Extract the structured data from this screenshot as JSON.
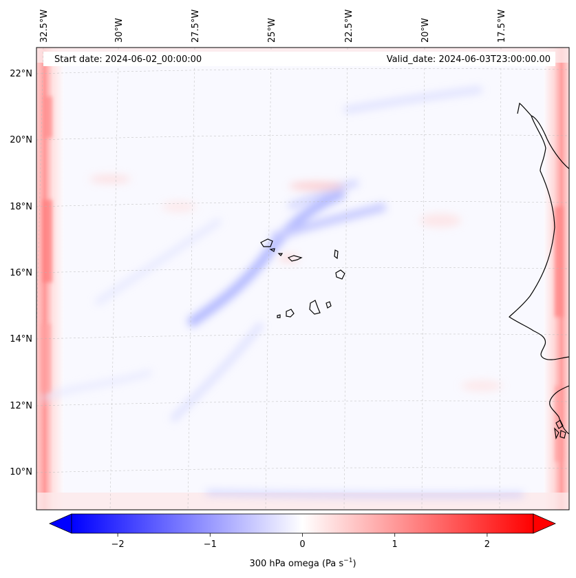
{
  "header": {
    "start_date": "Start date: 2024-06-02_00:00:00",
    "valid_date": "Valid_date: 2024-06-03T23:00:00.00"
  },
  "lon_labels": [
    "32.5°W",
    "30°W",
    "27.5°W",
    "25°W",
    "22.5°W",
    "20°W",
    "17.5°W"
  ],
  "lat_labels": [
    "22°N",
    "20°N",
    "18°N",
    "16°N",
    "14°N",
    "12°N",
    "10°N"
  ],
  "colorbar": {
    "ticks": [
      "−2",
      "−1",
      "0",
      "1",
      "2"
    ],
    "tick_values": [
      -2,
      -1,
      0,
      1,
      2
    ],
    "range": [
      -2.5,
      2.5
    ],
    "label_prefix": "300 hPa omega (Pa s",
    "label_exp": "−1",
    "label_suffix": ")",
    "cmap": "bwr",
    "extend": "both"
  },
  "colors": {
    "negative": "#0000ff",
    "zero": "#ffffff",
    "positive": "#ff0000",
    "coastline": "#000000"
  }
}
